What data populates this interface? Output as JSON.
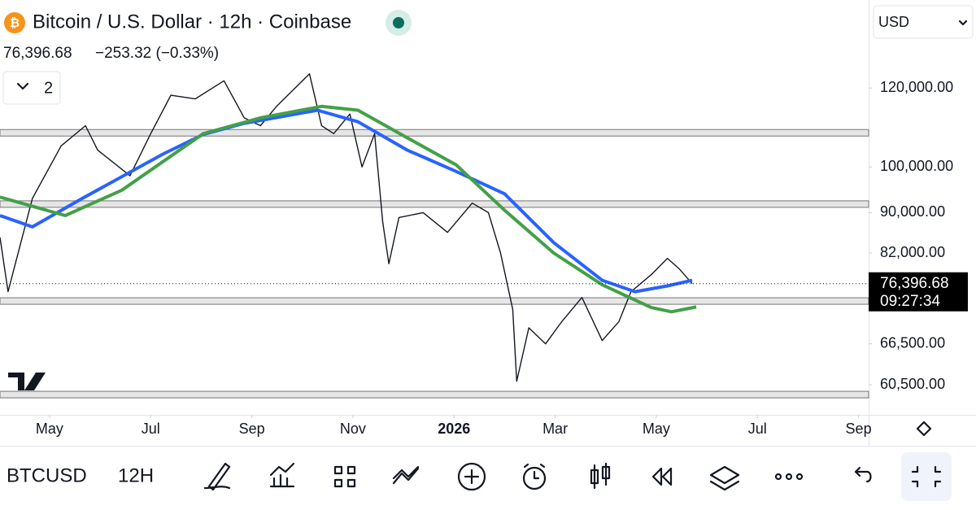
{
  "header": {
    "title": "Bitcoin / U.S. Dollar · 12h · Coinbase",
    "last": "76,396.68",
    "change": "−253.32 (−0.33%)",
    "collapsed_count": "2",
    "currency": "USD"
  },
  "toolbar": {
    "symbol": "BTCUSD",
    "interval": "12H"
  },
  "chart_data": {
    "type": "line",
    "log_scale": true,
    "xlim": [
      -0.98,
      16.2
    ],
    "ylim": [
      56450,
      147000
    ],
    "xticks": [
      {
        "value": 0,
        "label": "May"
      },
      {
        "value": 2,
        "label": "Jul"
      },
      {
        "value": 4,
        "label": "Sep"
      },
      {
        "value": 6,
        "label": "Nov"
      },
      {
        "value": 8,
        "label": "2026"
      },
      {
        "value": 10,
        "label": "Mar"
      },
      {
        "value": 12,
        "label": "May"
      },
      {
        "value": 14,
        "label": "Jul"
      },
      {
        "value": 16,
        "label": "Sep"
      }
    ],
    "yticks": [
      {
        "value": 120000,
        "label": "120,000.00"
      },
      {
        "value": 100000,
        "label": "100,000.00"
      },
      {
        "value": 90000,
        "label": "90,000.00"
      },
      {
        "value": 82000,
        "label": "82,000.00"
      },
      {
        "value": 66500,
        "label": "66,500.00"
      },
      {
        "value": 60500,
        "label": "60,500.00"
      }
    ],
    "last_price": {
      "value": 76396.68,
      "label": "76,396.68"
    },
    "countdown": "09:27:34",
    "levels": [
      108200,
      91800,
      73400,
      59150
    ],
    "series": [
      {
        "color": "#131722",
        "x": [
          -0.98,
          -0.82,
          -0.34,
          0.23,
          0.71,
          0.95,
          1.59,
          2.0,
          2.4,
          2.88,
          3.45,
          3.85,
          4.17,
          4.49,
          5.14,
          5.38,
          5.62,
          5.94,
          6.18,
          6.43,
          6.59,
          6.71,
          6.91,
          7.39,
          7.87,
          8.36,
          8.68,
          8.92,
          9.16,
          9.24,
          9.48,
          9.81,
          10.13,
          10.53,
          10.93,
          11.26,
          11.5,
          11.9,
          12.22,
          12.46,
          12.71
        ],
        "values": [
          85000,
          75000,
          93000,
          105000,
          110000,
          104000,
          98000,
          108000,
          118000,
          117000,
          122000,
          112000,
          110000,
          115000,
          124000,
          110000,
          108000,
          113000,
          100000,
          108000,
          88000,
          80000,
          89000,
          90000,
          86000,
          92000,
          90000,
          82000,
          72000,
          61000,
          69000,
          66500,
          70000,
          74000,
          67000,
          70000,
          75000,
          78000,
          81000,
          79000,
          76400
        ]
      },
      {
        "color": "#2962ff",
        "x": [
          -0.98,
          -0.34,
          0.63,
          2.24,
          3.04,
          3.85,
          5.3,
          6.1,
          7.07,
          8.04,
          9.0,
          9.97,
          10.93,
          11.58,
          12.22,
          12.71
        ],
        "values": [
          89400,
          87100,
          92900,
          103000,
          107800,
          110600,
          114000,
          111000,
          104000,
          99000,
          94000,
          84000,
          77000,
          75000,
          76000,
          77000
        ]
      },
      {
        "color": "#43a047",
        "x": [
          -0.98,
          0.31,
          1.43,
          3.04,
          4.17,
          5.38,
          6.1,
          7.07,
          8.04,
          9.0,
          9.97,
          10.93,
          11.9,
          12.3,
          12.79
        ],
        "values": [
          93300,
          89400,
          94800,
          108000,
          112000,
          115000,
          114000,
          107000,
          100500,
          90500,
          82000,
          76200,
          72300,
          71600,
          72400
        ]
      }
    ]
  }
}
